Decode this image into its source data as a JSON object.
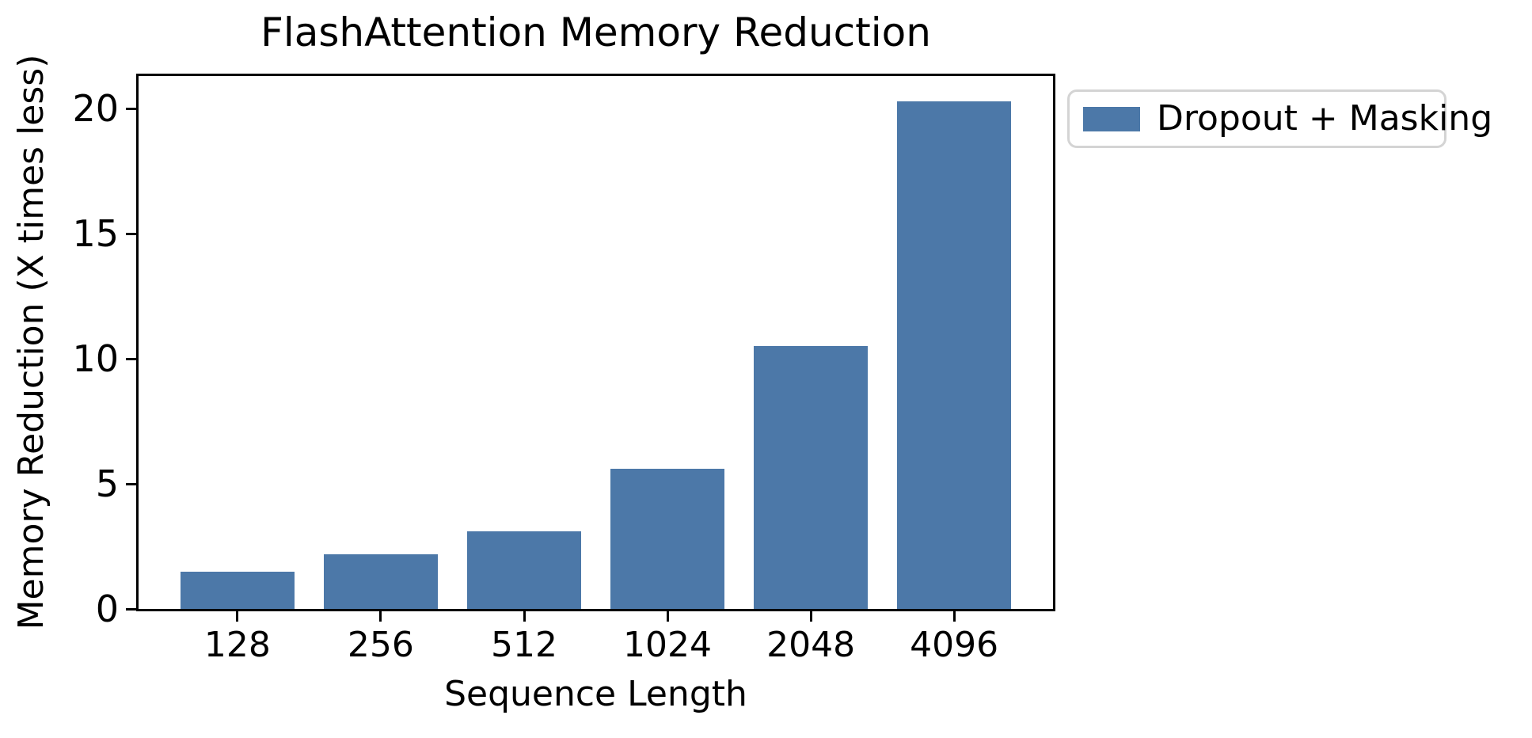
{
  "chart_data": {
    "type": "bar",
    "title": "FlashAttention Memory Reduction",
    "xlabel": "Sequence Length",
    "ylabel": "Memory Reduction (X times less)",
    "categories": [
      "128",
      "256",
      "512",
      "1024",
      "2048",
      "4096"
    ],
    "series": [
      {
        "name": "Dropout + Masking",
        "values": [
          1.5,
          2.2,
          3.1,
          5.6,
          10.5,
          20.3
        ],
        "color": "#4C78A8"
      }
    ],
    "ylim": [
      0,
      21.3
    ],
    "yticks": [
      0,
      5,
      10,
      15,
      20
    ],
    "grid": false,
    "legend_position": "outside-upper-right",
    "bar_width_fraction": 0.8,
    "colors": {
      "bar_fill": "#4C78A8",
      "axis": "#000000",
      "legend_border": "#d4d4d4",
      "background": "#ffffff"
    }
  }
}
